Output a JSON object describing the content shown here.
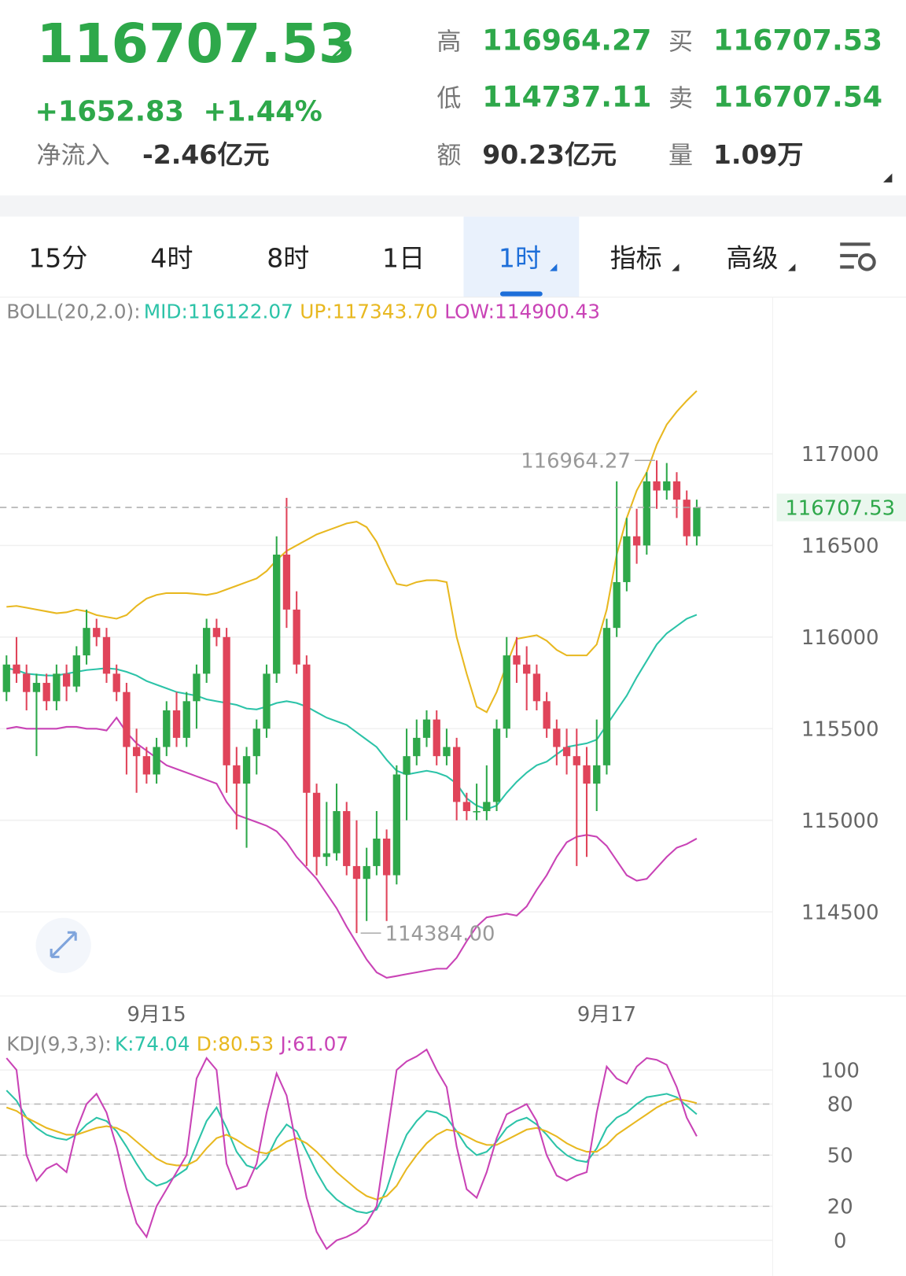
{
  "header": {
    "price": "116707.53",
    "change": "+1652.83",
    "change_pct": "+1.44%",
    "net_inflow_label": "净流入",
    "net_inflow": "-2.46亿元",
    "high_label": "高",
    "high": "116964.27",
    "low_label": "低",
    "low": "114737.11",
    "amount_label": "额",
    "amount": "90.23亿元",
    "bid_label": "买",
    "bid": "116707.53",
    "ask_label": "卖",
    "ask": "116707.54",
    "volume_label": "量",
    "volume": "1.09万"
  },
  "tabs": [
    "15分",
    "4时",
    "8时",
    "1日",
    "1时",
    "指标",
    "高级"
  ],
  "chart_data": [
    {
      "type": "candlestick",
      "indicator": "BOLL(20,2.0):",
      "categories": [
        null,
        null,
        null,
        null,
        null,
        null,
        null,
        null,
        null,
        null,
        null,
        null,
        null,
        null,
        null,
        "9月15",
        null,
        null,
        null,
        null,
        null,
        null,
        null,
        null,
        null,
        null,
        null,
        null,
        null,
        null,
        null,
        null,
        null,
        null,
        null,
        null,
        null,
        null,
        null,
        null,
        null,
        null,
        null,
        null,
        null,
        null,
        null,
        null,
        null,
        null,
        null,
        null,
        null,
        null,
        null,
        null,
        null,
        null,
        null,
        null,
        "9月17",
        null,
        null,
        null,
        null,
        null,
        null,
        null,
        null,
        null
      ],
      "open": [
        115700,
        115850,
        115800,
        115700,
        115750,
        115650,
        115800,
        115730,
        115900,
        116050,
        116000,
        115800,
        115700,
        115400,
        115350,
        115250,
        115400,
        115600,
        115450,
        115650,
        115800,
        116050,
        116000,
        115300,
        115200,
        115350,
        115500,
        115800,
        116450,
        116150,
        115850,
        115150,
        114800,
        114820,
        115050,
        114750,
        114680,
        114750,
        114900,
        114700,
        115250,
        115350,
        115450,
        115550,
        115350,
        115400,
        115100,
        115050,
        115050,
        115100,
        115500,
        115900,
        115850,
        115800,
        115650,
        115500,
        115400,
        115350,
        115300,
        115200,
        115300,
        116050,
        116300,
        116550,
        116500,
        116850,
        116800,
        116850,
        116750,
        116550
      ],
      "high": [
        115900,
        116000,
        115850,
        115800,
        115800,
        115850,
        115850,
        115950,
        116150,
        116100,
        116050,
        115850,
        115750,
        115500,
        115400,
        115450,
        115650,
        115700,
        115700,
        115850,
        116100,
        116100,
        116050,
        115400,
        115400,
        115550,
        115850,
        116550,
        116760,
        116250,
        115900,
        115200,
        115100,
        115200,
        115100,
        115000,
        114850,
        115050,
        114950,
        115300,
        115500,
        115550,
        115600,
        115600,
        115500,
        115450,
        115150,
        115200,
        115300,
        115550,
        116000,
        116000,
        115950,
        115850,
        115700,
        115550,
        115500,
        115500,
        115400,
        115550,
        116100,
        116850,
        116650,
        116700,
        116900,
        116964.27,
        116950,
        116900,
        116800,
        116750
      ],
      "low": [
        115650,
        115750,
        115600,
        115350,
        115600,
        115600,
        115650,
        115700,
        115850,
        115950,
        115750,
        115650,
        115250,
        115150,
        115200,
        115200,
        115350,
        115400,
        115400,
        115500,
        115750,
        115950,
        115150,
        114950,
        114850,
        115250,
        115450,
        115750,
        116050,
        115800,
        114750,
        114700,
        114750,
        114780,
        114700,
        114384,
        114450,
        114700,
        114450,
        114650,
        115000,
        115300,
        115400,
        115300,
        115300,
        115000,
        115000,
        115000,
        115000,
        115050,
        115450,
        115750,
        115600,
        115600,
        115450,
        115300,
        115250,
        114750,
        114800,
        115050,
        115250,
        116000,
        116250,
        116400,
        116450,
        116700,
        116750,
        116650,
        116500,
        116500
      ],
      "close": [
        115850,
        115800,
        115700,
        115750,
        115650,
        115800,
        115730,
        115900,
        116050,
        116000,
        115800,
        115700,
        115400,
        115350,
        115250,
        115400,
        115600,
        115450,
        115650,
        115800,
        116050,
        116000,
        115300,
        115200,
        115350,
        115500,
        115800,
        116450,
        116150,
        115850,
        115150,
        114800,
        114820,
        115050,
        114750,
        114680,
        114750,
        114900,
        114700,
        115250,
        115350,
        115450,
        115550,
        115350,
        115400,
        115100,
        115050,
        115050,
        115100,
        115500,
        115900,
        115850,
        115800,
        115650,
        115500,
        115400,
        115350,
        115300,
        115200,
        115300,
        116050,
        116300,
        116550,
        116500,
        116850,
        116800,
        116850,
        116750,
        116550,
        116707.53
      ],
      "up_color": "#2ea84a",
      "down_color": "#e0445a",
      "series": [
        {
          "label": "MID:116122.07",
          "color": "#2cc3a8",
          "values": [
            115830,
            115820,
            115800,
            115795,
            115790,
            115790,
            115800,
            115810,
            115820,
            115825,
            115830,
            115825,
            115810,
            115790,
            115760,
            115740,
            115720,
            115700,
            115690,
            115680,
            115660,
            115650,
            115640,
            115630,
            115610,
            115605,
            115620,
            115640,
            115650,
            115640,
            115620,
            115590,
            115560,
            115540,
            115520,
            115480,
            115440,
            115400,
            115330,
            115270,
            115250,
            115260,
            115270,
            115260,
            115240,
            115200,
            115120,
            115080,
            115060,
            115080,
            115150,
            115210,
            115260,
            115300,
            115320,
            115360,
            115400,
            115410,
            115420,
            115440,
            115520,
            115600,
            115680,
            115780,
            115870,
            115960,
            116020,
            116060,
            116100,
            116122.07
          ]
        },
        {
          "label": "UP:117343.70",
          "color": "#e8b820",
          "values": [
            116165,
            116170,
            116160,
            116150,
            116140,
            116130,
            116135,
            116150,
            116140,
            116120,
            116110,
            116100,
            116120,
            116170,
            116210,
            116230,
            116240,
            116240,
            116240,
            116235,
            116230,
            116240,
            116260,
            116280,
            116300,
            116320,
            116360,
            116420,
            116470,
            116500,
            116530,
            116560,
            116580,
            116600,
            116620,
            116630,
            116600,
            116520,
            116400,
            116290,
            116280,
            116300,
            116310,
            116310,
            116300,
            116000,
            115800,
            115620,
            115590,
            115700,
            115850,
            115990,
            116000,
            116010,
            115980,
            115930,
            115900,
            115900,
            115900,
            115960,
            116150,
            116450,
            116650,
            116800,
            116900,
            117050,
            117160,
            117230,
            117290,
            117343.7
          ]
        },
        {
          "label": "LOW:114900.43",
          "color": "#c943b6",
          "values": [
            115500,
            115510,
            115500,
            115500,
            115500,
            115500,
            115510,
            115510,
            115500,
            115500,
            115490,
            115560,
            115480,
            115420,
            115380,
            115340,
            115300,
            115280,
            115260,
            115240,
            115220,
            115200,
            115100,
            115030,
            115010,
            114990,
            114970,
            114940,
            114880,
            114800,
            114740,
            114680,
            114600,
            114520,
            114420,
            114330,
            114240,
            114170,
            114140,
            114150,
            114160,
            114170,
            114180,
            114190,
            114190,
            114250,
            114340,
            114420,
            114470,
            114480,
            114490,
            114480,
            114530,
            114620,
            114700,
            114800,
            114880,
            114910,
            114920,
            114910,
            114860,
            114780,
            114700,
            114670,
            114680,
            114740,
            114800,
            114850,
            114870,
            114900.43
          ]
        }
      ],
      "ylim": [
        114050,
        117700
      ],
      "yticks": [
        114500,
        115000,
        115500,
        116000,
        116500,
        117000
      ],
      "grid": true,
      "current": 116707.53,
      "annotations": [
        {
          "label": "116964.27",
          "value": 116964.27
        },
        {
          "label": "114384.00",
          "value": 114384
        }
      ]
    },
    {
      "type": "line",
      "indicator": "KDJ(9,3,3):",
      "series": [
        {
          "label": "K:74.04",
          "color": "#2cc3a8",
          "values": [
            88,
            82,
            72,
            66,
            62,
            60,
            59,
            62,
            68,
            72,
            70,
            64,
            55,
            45,
            36,
            32,
            34,
            38,
            42,
            56,
            70,
            78,
            66,
            52,
            44,
            42,
            48,
            60,
            68,
            64,
            52,
            40,
            30,
            24,
            20,
            17,
            16,
            18,
            30,
            48,
            62,
            70,
            76,
            75,
            72,
            64,
            55,
            50,
            52,
            58,
            66,
            70,
            72,
            68,
            62,
            55,
            50,
            47,
            46,
            54,
            66,
            72,
            75,
            80,
            84,
            85,
            86,
            84,
            79,
            74.04
          ]
        },
        {
          "label": "D:80.53",
          "color": "#e8b820",
          "values": [
            78,
            76,
            72,
            69,
            66,
            64,
            62,
            62,
            64,
            66,
            67,
            66,
            63,
            58,
            53,
            48,
            45,
            44,
            44,
            47,
            54,
            60,
            62,
            59,
            55,
            52,
            51,
            54,
            58,
            60,
            57,
            52,
            46,
            40,
            35,
            30,
            26,
            24,
            26,
            32,
            42,
            50,
            57,
            62,
            65,
            64,
            61,
            58,
            56,
            56,
            59,
            62,
            65,
            66,
            64,
            61,
            57,
            54,
            52,
            52,
            56,
            62,
            66,
            70,
            74,
            78,
            81,
            83,
            82,
            80.53
          ]
        },
        {
          "label": "J:61.07",
          "color": "#c943b6",
          "values": [
            107,
            100,
            50,
            35,
            42,
            45,
            40,
            65,
            80,
            86,
            75,
            55,
            30,
            10,
            2,
            20,
            30,
            40,
            50,
            95,
            107,
            100,
            45,
            30,
            32,
            45,
            75,
            98,
            85,
            55,
            25,
            5,
            -5,
            0,
            2,
            5,
            10,
            20,
            60,
            100,
            105,
            108,
            112,
            100,
            90,
            55,
            30,
            25,
            40,
            60,
            74,
            77,
            80,
            70,
            50,
            38,
            35,
            38,
            40,
            75,
            102,
            95,
            92,
            102,
            107,
            106,
            103,
            90,
            72,
            61.07
          ]
        }
      ],
      "ylim": [
        -17,
        121.5
      ],
      "yticks": [
        0,
        20,
        50,
        80,
        100
      ],
      "grid": true,
      "reference_lines": [
        20,
        50,
        80
      ]
    }
  ]
}
